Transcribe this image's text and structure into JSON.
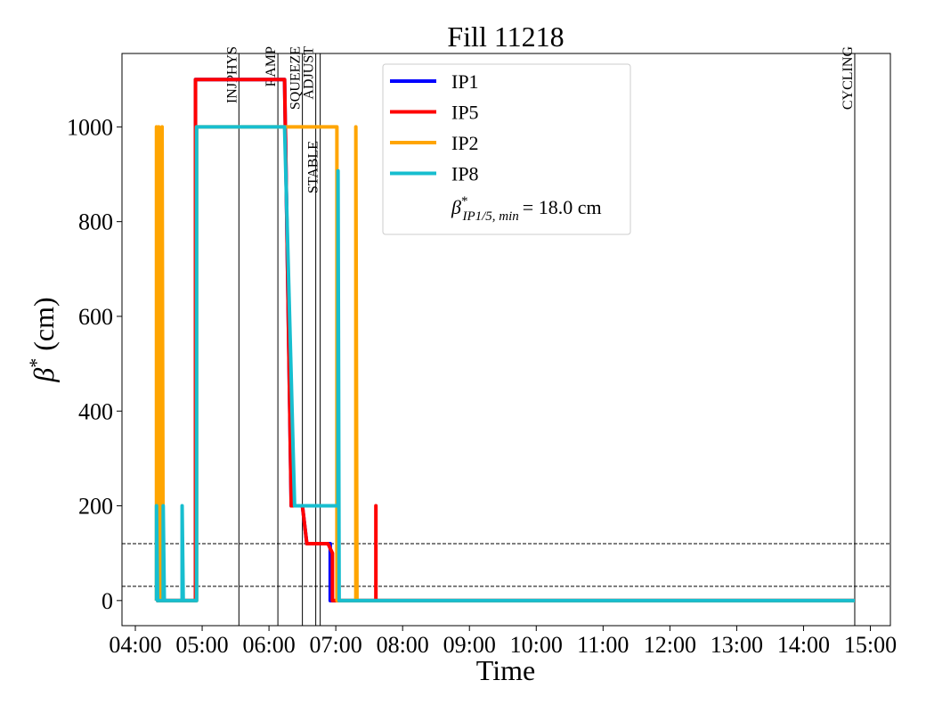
{
  "chart_data": {
    "type": "line",
    "title": "Fill 11218",
    "xlabel": "Time",
    "ylabel": {
      "symbol": "β",
      "sup": "*",
      "unit": "(cm)"
    },
    "xlim": [
      "03:48",
      "15:18"
    ],
    "xticks": [
      "04:00",
      "05:00",
      "06:00",
      "07:00",
      "08:00",
      "09:00",
      "10:00",
      "11:00",
      "12:00",
      "13:00",
      "14:00",
      "15:00"
    ],
    "ylim": [
      -53,
      1155
    ],
    "yticks": [
      0,
      200,
      400,
      600,
      800,
      1000
    ],
    "legend": "upper center",
    "series": [
      {
        "name": "IP1",
        "color": "#0000ff",
        "x": [
          "04:19",
          "04:54",
          "04:54",
          "06:14",
          "06:20",
          "06:30",
          "06:34",
          "06:55",
          "06:55",
          "14:46"
        ],
        "values": [
          0,
          0,
          1100,
          1100,
          200,
          200,
          120,
          120,
          0,
          0
        ]
      },
      {
        "name": "IP5",
        "color": "#ff0000",
        "x": [
          "04:19",
          "04:54",
          "04:54",
          "06:14",
          "06:20",
          "06:30",
          "06:34",
          "06:53",
          "06:57",
          "06:57",
          "07:36",
          "07:36",
          "07:36",
          "14:46"
        ],
        "values": [
          0,
          0,
          1100,
          1100,
          200,
          200,
          120,
          120,
          100,
          0,
          0,
          200,
          0,
          0
        ]
      },
      {
        "name": "IP2",
        "color": "#ffa500",
        "x": [
          "04:19",
          "04:19",
          "04:20",
          "04:21",
          "04:21",
          "04:22",
          "04:24",
          "04:24",
          "04:25",
          "04:55",
          "04:55",
          "07:01",
          "07:01",
          "07:18",
          "07:18",
          "07:19",
          "14:46"
        ],
        "values": [
          0,
          1000,
          0,
          0,
          1000,
          0,
          0,
          1000,
          0,
          0,
          1000,
          1000,
          0,
          0,
          1000,
          0,
          0
        ]
      },
      {
        "name": "IP8",
        "color": "#17becf",
        "x": [
          "04:19",
          "04:19",
          "04:20",
          "04:25",
          "04:25",
          "04:26",
          "04:42",
          "04:42",
          "04:43",
          "04:55",
          "04:55",
          "06:14",
          "06:23",
          "07:02",
          "07:02",
          "07:03",
          "14:46"
        ],
        "values": [
          0,
          200,
          0,
          0,
          200,
          0,
          0,
          200,
          0,
          0,
          1000,
          1000,
          200,
          200,
          907,
          0,
          0
        ]
      }
    ],
    "events": [
      {
        "label": "INJPHYS",
        "x": "05:33"
      },
      {
        "label": "RAMP",
        "x": "06:08"
      },
      {
        "label": "SQUEEZE",
        "x": "06:30"
      },
      {
        "label": "ADJUST",
        "x": "06:42"
      },
      {
        "label": "STABLE",
        "x": "06:46"
      },
      {
        "label": "CYCLING",
        "x": "14:46"
      }
    ],
    "hlines": [
      120,
      30
    ],
    "annotation": {
      "symbol": "β",
      "sup": "*",
      "sub": "IP1/5, min",
      "text": "= 18.0 cm"
    }
  }
}
